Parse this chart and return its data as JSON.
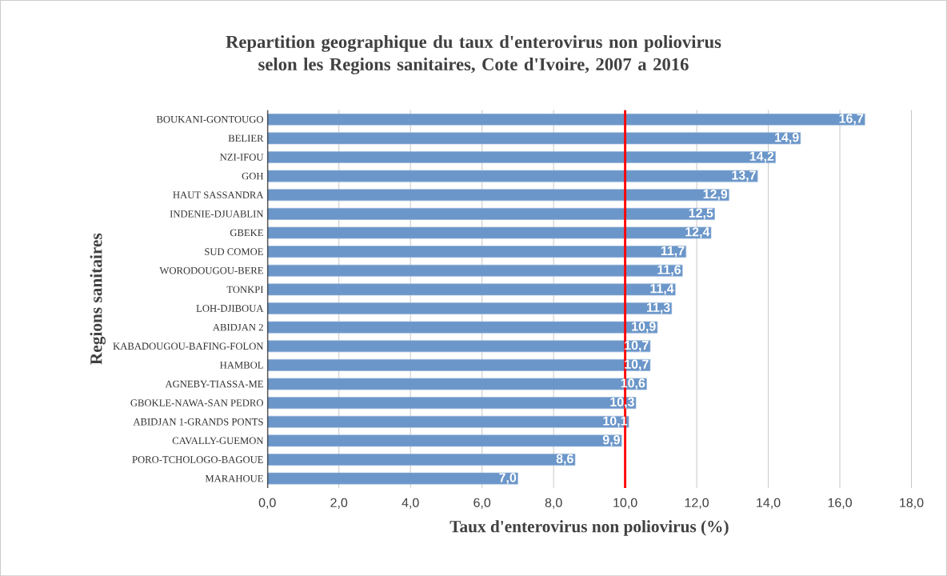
{
  "chart_data": {
    "type": "bar",
    "orientation": "horizontal",
    "title": "Repartition geographique du taux d'enterovirus non poliovirus selon les Regions sanitaires, Cote d'Ivoire, 2007 a 2016",
    "xlabel": "Taux d'enterovirus non poliovirus (%)",
    "ylabel": "Regions sanitaires",
    "categories": [
      "BOUKANI-GONTOUGO",
      "BELIER",
      "NZI-IFOU",
      "GOH",
      "HAUT SASSANDRA",
      "INDENIE-DJUABLIN",
      "GBEKE",
      "SUD COMOE",
      "WORODOUGOU-BERE",
      "TONKPI",
      "LOH-DJIBOUA",
      "ABIDJAN 2",
      "KABADOUGOU-BAFING-FOLON",
      "HAMBOL",
      "AGNEBY-TIASSA-ME",
      "GBOKLE-NAWA-SAN PEDRO",
      "ABIDJAN 1-GRANDS PONTS",
      "CAVALLY-GUEMON",
      "PORO-TCHOLOGO-BAGOUE",
      "MARAHOUE"
    ],
    "values": [
      16.7,
      14.9,
      14.2,
      13.7,
      12.9,
      12.5,
      12.4,
      11.7,
      11.6,
      11.4,
      11.3,
      10.9,
      10.7,
      10.7,
      10.6,
      10.3,
      10.1,
      9.9,
      8.6,
      7.0
    ],
    "value_labels": [
      "16,7",
      "14,9",
      "14,2",
      "13,7",
      "12,9",
      "12,5",
      "12,4",
      "11,7",
      "11,6",
      "11,4",
      "11,3",
      "10,9",
      "10,7",
      "10,7",
      "10,6",
      "10,3",
      "10,1",
      "9,9",
      "8,6",
      "7,0"
    ],
    "color": "#6b96c9",
    "xlim": [
      0,
      18
    ],
    "xticks": [
      {
        "value": 0,
        "label": "0,0"
      },
      {
        "value": 2,
        "label": "2,0"
      },
      {
        "value": 4,
        "label": "4,0"
      },
      {
        "value": 6,
        "label": "6,0"
      },
      {
        "value": 8,
        "label": "8,0"
      },
      {
        "value": 10,
        "label": "10,0"
      },
      {
        "value": 12,
        "label": "12,0"
      },
      {
        "value": 14,
        "label": "14,0"
      },
      {
        "value": 16,
        "label": "16,0"
      },
      {
        "value": 18,
        "label": "18,0"
      }
    ],
    "grid": "x",
    "ref_lines": [
      {
        "axis": "x",
        "value": 10,
        "color": "#ff0000"
      }
    ]
  }
}
